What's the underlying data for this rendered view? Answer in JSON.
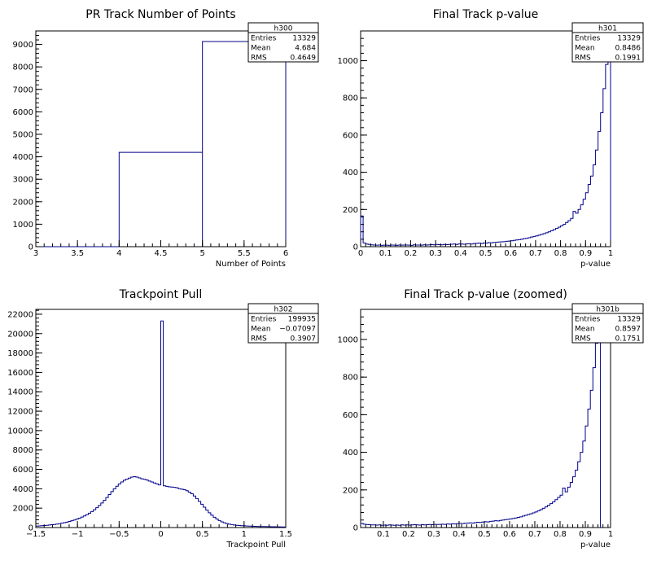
{
  "chart_data": [
    {
      "type": "histogram",
      "title": "PR Track Number of Points",
      "xlabel": "Number of Points",
      "xlim": [
        3,
        6
      ],
      "ylim": [
        0,
        9600
      ],
      "xticks": [
        "3",
        "3.5",
        "4",
        "4.5",
        "5",
        "5.5",
        "6"
      ],
      "yticks": [
        "0",
        "1000",
        "2000",
        "3000",
        "4000",
        "5000",
        "6000",
        "7000",
        "8000",
        "9000"
      ],
      "series": [
        {
          "bin_width": 1,
          "bins": [
            [
              3,
              0
            ],
            [
              4,
              4200
            ],
            [
              5,
              9129
            ]
          ]
        }
      ],
      "stats": {
        "name": "h300",
        "rows": [
          [
            "Entries",
            "13329"
          ],
          [
            "Mean",
            "4.684"
          ],
          [
            "RMS",
            "0.4649"
          ]
        ]
      },
      "color": "#00008b"
    },
    {
      "type": "histogram",
      "title": "Final Track p-value",
      "xlabel": "p-value",
      "xlim": [
        0,
        1
      ],
      "ylim": [
        0,
        1160
      ],
      "xticks": [
        "0",
        "0.1",
        "0.2",
        "0.3",
        "0.4",
        "0.5",
        "0.6",
        "0.7",
        "0.8",
        "0.9",
        "1"
      ],
      "yticks": [
        "0",
        "200",
        "400",
        "600",
        "800",
        "1000"
      ],
      "series": [
        {
          "bin_width": 0.01,
          "values": [
            165,
            20,
            14,
            12,
            10,
            9,
            8,
            9,
            7,
            8,
            8,
            7,
            9,
            8,
            7,
            9,
            8,
            9,
            9,
            8,
            7,
            10,
            9,
            9,
            8,
            10,
            9,
            10,
            11,
            10,
            12,
            11,
            10,
            12,
            11,
            12,
            13,
            14,
            12,
            15,
            14,
            13,
            15,
            16,
            14,
            17,
            18,
            19,
            17,
            20,
            19,
            22,
            21,
            23,
            24,
            25,
            26,
            27,
            29,
            30,
            32,
            34,
            36,
            38,
            40,
            43,
            45,
            48,
            52,
            55,
            58,
            62,
            66,
            70,
            75,
            80,
            86,
            92,
            98,
            105,
            112,
            120,
            130,
            140,
            152,
            190,
            180,
            200,
            225,
            255,
            290,
            335,
            380,
            440,
            520,
            620,
            720,
            850,
            980,
            1040
          ]
        }
      ],
      "stats": {
        "name": "h301",
        "rows": [
          [
            "Entries",
            "13329"
          ],
          [
            "Mean",
            "0.8486"
          ],
          [
            "RMS",
            "0.1991"
          ]
        ]
      },
      "color": "#00008b"
    },
    {
      "type": "histogram",
      "title": "Trackpoint Pull",
      "xlabel": "Trackpoint Pull",
      "xlim": [
        -1.5,
        1.5
      ],
      "ylim": [
        0,
        22500
      ],
      "xticks": [
        "−1.5",
        "−1",
        "−0.5",
        "0",
        "0.5",
        "1",
        "1.5"
      ],
      "yticks": [
        "0",
        "2000",
        "4000",
        "6000",
        "8000",
        "10000",
        "12000",
        "14000",
        "16000",
        "18000",
        "20000",
        "22000"
      ],
      "series": [
        {
          "bin_width": 0.03,
          "values": [
            150,
            170,
            190,
            210,
            230,
            260,
            290,
            320,
            360,
            400,
            450,
            500,
            560,
            630,
            700,
            780,
            870,
            970,
            1080,
            1200,
            1330,
            1480,
            1650,
            1840,
            2050,
            2280,
            2530,
            2800,
            3100,
            3400,
            3700,
            3990,
            4260,
            4500,
            4700,
            4880,
            5000,
            5100,
            5200,
            5250,
            5200,
            5120,
            5030,
            4970,
            4900,
            4800,
            4700,
            4600,
            4500,
            4400,
            21300,
            4300,
            4250,
            4200,
            4180,
            4150,
            4100,
            4000,
            3960,
            3900,
            3800,
            3650,
            3480,
            3250,
            2990,
            2700,
            2400,
            2100,
            1800,
            1520,
            1280,
            1060,
            880,
            720,
            590,
            490,
            410,
            350,
            300,
            260,
            230,
            210,
            190,
            175,
            160,
            150,
            140,
            130,
            120,
            110,
            105,
            100,
            95,
            90,
            85,
            80,
            75,
            70,
            65,
            60
          ]
        }
      ],
      "stats": {
        "name": "h302",
        "rows": [
          [
            "Entries",
            "199935"
          ],
          [
            "Mean",
            "−0.07097"
          ],
          [
            "RMS",
            "0.3907"
          ]
        ]
      },
      "color": "#00008b"
    },
    {
      "type": "histogram",
      "title": "Final Track p-value (zoomed)",
      "xlabel": "p-value",
      "xlim": [
        0.01,
        1
      ],
      "ylim": [
        0,
        1160
      ],
      "xticks": [
        "0.1",
        "0.2",
        "0.3",
        "0.4",
        "0.5",
        "0.6",
        "0.7",
        "0.8",
        "0.9",
        "1"
      ],
      "yticks": [
        "0",
        "200",
        "400",
        "600",
        "800",
        "1000"
      ],
      "series": [
        {
          "bin_width": 0.01,
          "x_start": 0.01,
          "values": [
            22,
            18,
            16,
            15,
            14,
            14,
            13,
            14,
            12,
            13,
            12,
            14,
            13,
            12,
            13,
            12,
            14,
            13,
            14,
            13,
            14,
            15,
            14,
            13,
            15,
            14,
            15,
            16,
            15,
            17,
            16,
            17,
            18,
            17,
            19,
            18,
            20,
            19,
            21,
            22,
            21,
            23,
            24,
            25,
            24,
            26,
            28,
            27,
            29,
            31,
            30,
            33,
            34,
            36,
            35,
            38,
            40,
            42,
            44,
            46,
            48,
            51,
            54,
            57,
            61,
            65,
            69,
            73,
            78,
            83,
            89,
            95,
            102,
            110,
            118,
            127,
            137,
            148,
            160,
            172,
            210,
            190,
            215,
            240,
            270,
            305,
            350,
            400,
            460,
            540,
            630,
            730,
            850,
            980,
            1040
          ]
        }
      ],
      "stats": {
        "name": "h301b",
        "rows": [
          [
            "Entries",
            "13329"
          ],
          [
            "Mean",
            "0.8597"
          ],
          [
            "RMS",
            "0.1751"
          ]
        ]
      },
      "color": "#00008b"
    }
  ]
}
